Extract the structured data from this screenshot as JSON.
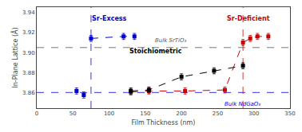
{
  "chart_data": {
    "type": "scatter",
    "xlabel": "Film Thickness (nm)",
    "ylabel": "In-Plane Lattice (Å)",
    "xlim": [
      0,
      350
    ],
    "ylim": [
      3.845,
      3.945
    ],
    "xticks": [
      0,
      50,
      100,
      150,
      200,
      250,
      300,
      350
    ],
    "yticks": [
      3.86,
      3.88,
      {
        "value": 3.9,
        "label": "3.90"
      },
      3.92,
      3.94
    ],
    "grid": false,
    "series": [
      {
        "color": "#0000cc",
        "marker": "square",
        "line_style": "none",
        "x": [
          55,
          65,
          75,
          120,
          135
        ],
        "values": [
          3.862,
          3.858,
          3.914,
          3.916,
          3.916
        ],
        "yerr": [
          0.003,
          0.003,
          0.003,
          0.003,
          0.003
        ]
      },
      {
        "color": "#0000cc",
        "marker": "none",
        "line_style": "dashed",
        "x": [
          75,
          120,
          135
        ],
        "values": [
          3.914,
          3.916,
          3.916
        ]
      },
      {
        "color": "#cc0000",
        "marker": "square",
        "line_style": "dashed",
        "x": [
          130,
          155,
          205,
          260,
          285,
          295,
          305,
          320
        ],
        "values": [
          3.861,
          3.862,
          3.862,
          3.863,
          3.91,
          3.914,
          3.916,
          3.916
        ],
        "yerr": [
          0.003,
          0.003,
          0.003,
          0.003,
          0.003,
          0.003,
          0.003,
          0.003
        ]
      },
      {
        "color": "#000000",
        "marker": "square",
        "line_style": "dashed",
        "x": [
          130,
          155,
          200,
          245,
          285
        ],
        "values": [
          3.862,
          3.863,
          3.876,
          3.882,
          3.887
        ],
        "yerr": [
          0.003,
          0.003,
          0.003,
          0.003,
          0.003
        ]
      }
    ],
    "reference_lines": [
      {
        "axis": "y",
        "value": 3.905,
        "color": "#555555"
      },
      {
        "axis": "y",
        "value": 3.8605,
        "color": "#0000cc"
      },
      {
        "axis": "x",
        "value": 75,
        "color": "#0000cc"
      },
      {
        "axis": "x",
        "value": 285,
        "color": "#cc0000"
      }
    ],
    "annotations": [
      {
        "text": "Sr-Excess",
        "x": 100,
        "y": 3.929,
        "color": "#0000cc",
        "style": "bold",
        "anchor": "bottom center"
      },
      {
        "text": "Sr-Deficient",
        "x": 293,
        "y": 3.929,
        "color": "#cc0000",
        "style": "bold",
        "anchor": "bottom center"
      },
      {
        "text": "Stoichiometric",
        "x": 165,
        "y": 3.897,
        "color": "#000000",
        "style": "bold",
        "anchor": "bottom center"
      },
      {
        "text": "Bulk SrTiO₃",
        "x": 185,
        "y": 3.908,
        "color": "#555555",
        "style": "italic",
        "anchor": "bottom center"
      },
      {
        "text": "Bulk NdGaO₃",
        "x": 310,
        "y": 3.853,
        "color": "#0000cc",
        "style": "italic",
        "anchor": "top right"
      }
    ]
  }
}
